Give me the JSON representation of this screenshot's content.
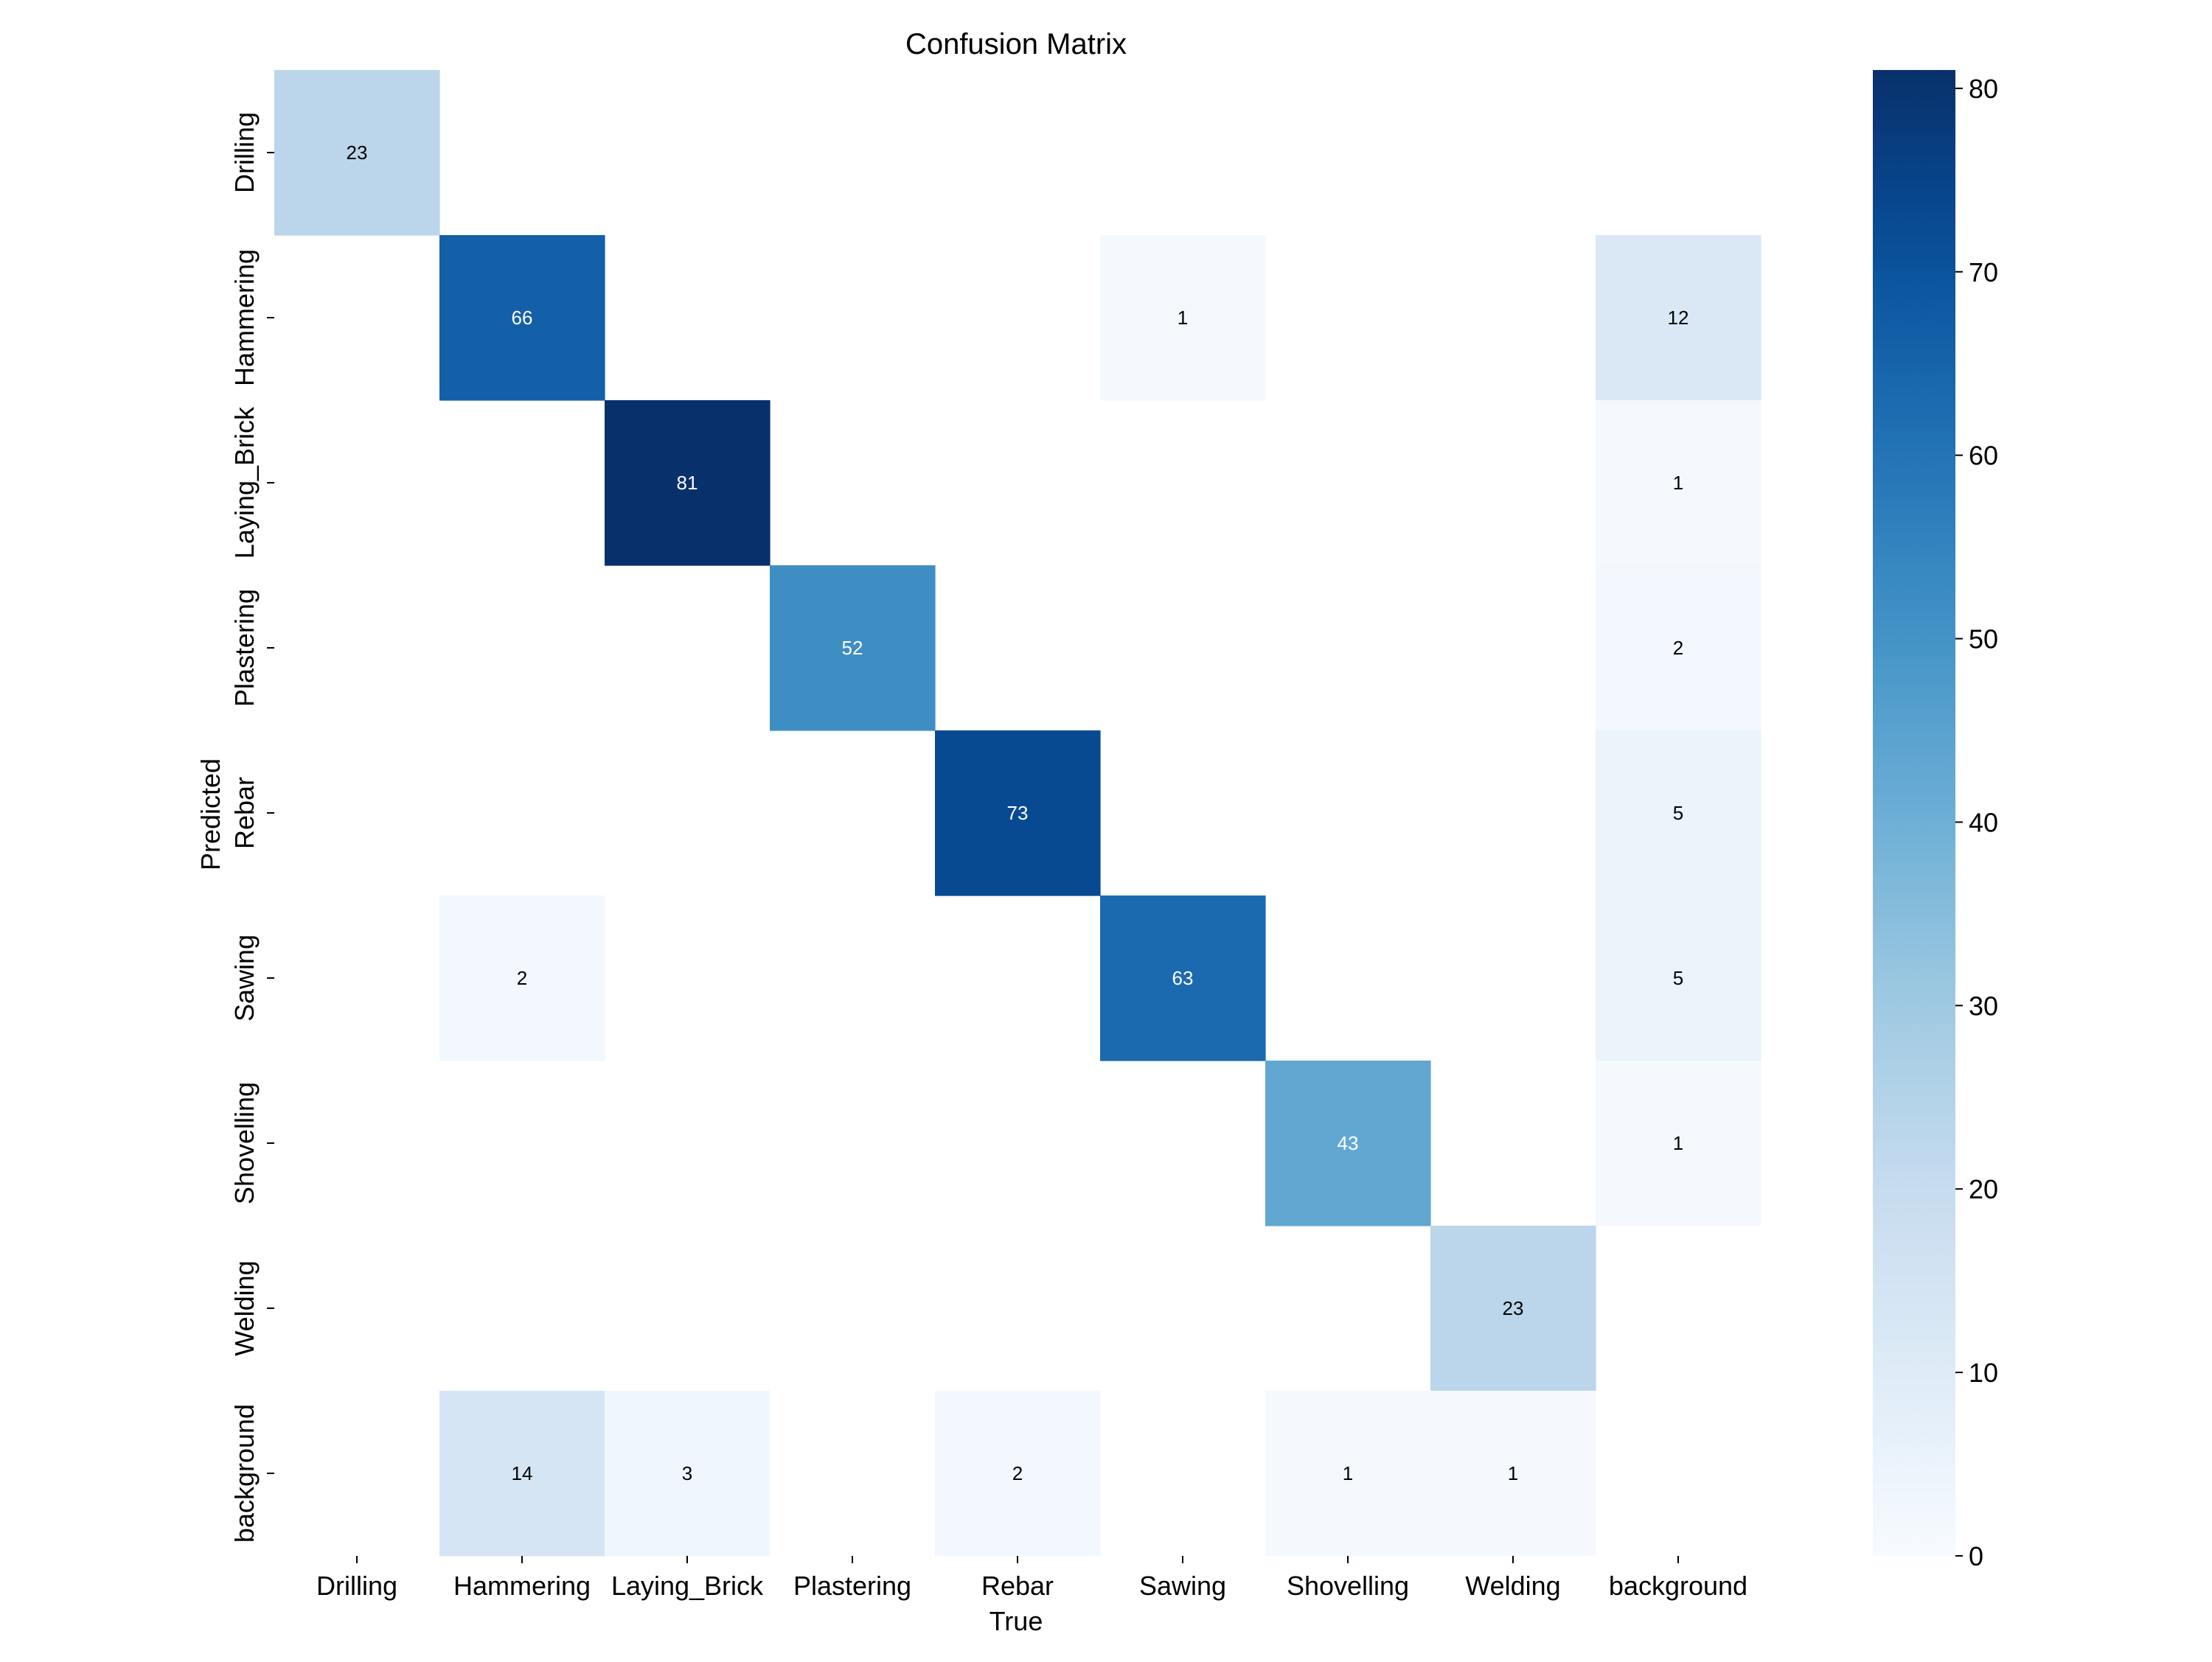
{
  "chart_data": {
    "type": "heatmap",
    "title": "Confusion Matrix",
    "xlabel": "True",
    "ylabel": "Predicted",
    "x_categories": [
      "Drilling",
      "Hammering",
      "Laying_Brick",
      "Plastering",
      "Rebar",
      "Sawing",
      "Shovelling",
      "Welding",
      "background"
    ],
    "y_categories": [
      "Drilling",
      "Hammering",
      "Laying_Brick",
      "Plastering",
      "Rebar",
      "Sawing",
      "Shovelling",
      "Welding",
      "background"
    ],
    "values": [
      [
        23,
        0,
        0,
        0,
        0,
        0,
        0,
        0,
        0
      ],
      [
        0,
        66,
        0,
        0,
        0,
        1,
        0,
        0,
        12
      ],
      [
        0,
        0,
        81,
        0,
        0,
        0,
        0,
        0,
        1
      ],
      [
        0,
        0,
        0,
        52,
        0,
        0,
        0,
        0,
        2
      ],
      [
        0,
        0,
        0,
        0,
        73,
        0,
        0,
        0,
        5
      ],
      [
        0,
        2,
        0,
        0,
        0,
        63,
        0,
        0,
        5
      ],
      [
        0,
        0,
        0,
        0,
        0,
        0,
        43,
        0,
        1
      ],
      [
        0,
        0,
        0,
        0,
        0,
        0,
        0,
        23,
        0
      ],
      [
        0,
        14,
        3,
        0,
        2,
        0,
        1,
        1,
        0
      ]
    ],
    "colormap": "Blues",
    "color_min": 0,
    "color_max": 81,
    "colorbar_ticks": [
      "0",
      "10",
      "20",
      "30",
      "40",
      "50",
      "60",
      "70",
      "80"
    ],
    "zero_cells_shown": false,
    "grid": false
  }
}
